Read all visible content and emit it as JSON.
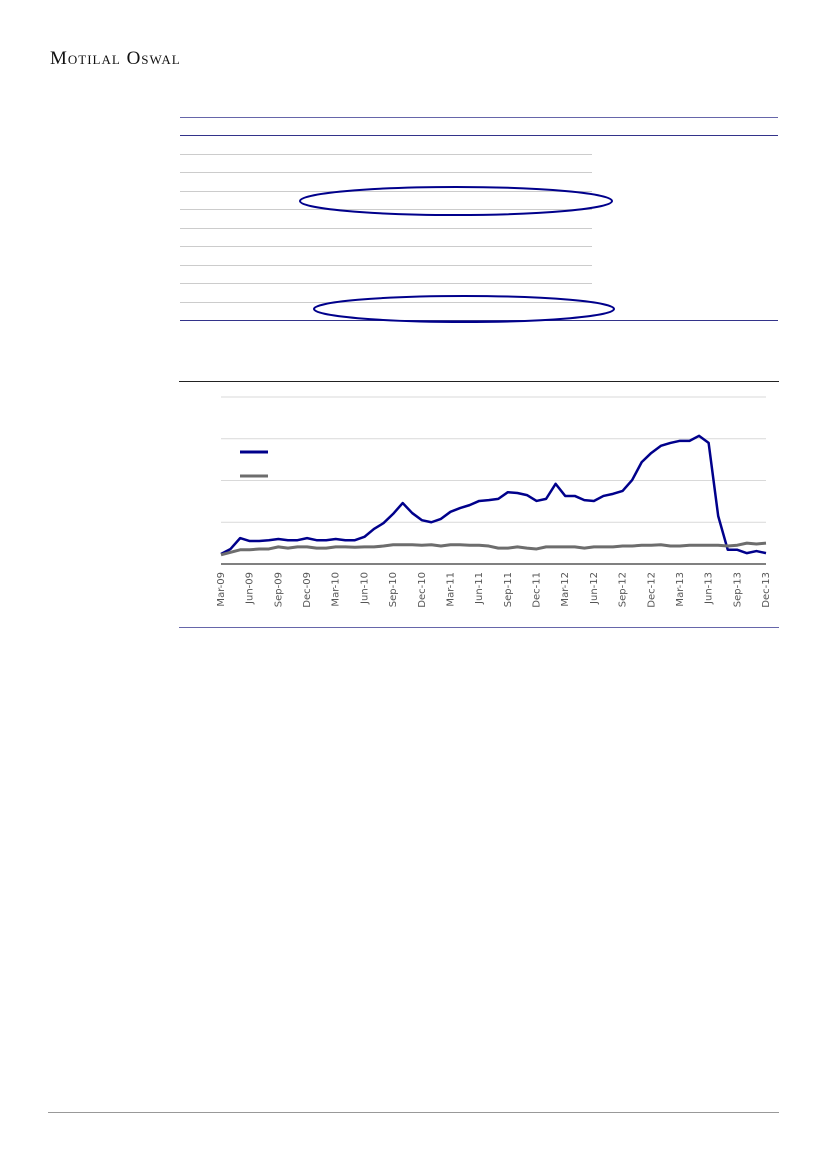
{
  "header": {
    "brand": "Motilal Oswal"
  },
  "chart_data": {
    "type": "line",
    "categories": [
      "Mar-09",
      null,
      null,
      "Jun-09",
      null,
      null,
      "Sep-09",
      null,
      null,
      "Dec-09",
      null,
      null,
      "Mar-10",
      null,
      null,
      "Jun-10",
      null,
      null,
      "Sep-10",
      null,
      null,
      "Dec-10",
      null,
      null,
      "Mar-11",
      null,
      null,
      "Jun-11",
      null,
      null,
      "Sep-11",
      null,
      null,
      "Dec-11",
      null,
      null,
      "Mar-12",
      null,
      null,
      "Jun-12",
      null,
      null,
      "Sep-12",
      null,
      null,
      "Dec-12",
      null,
      null,
      "Mar-13",
      null,
      null,
      "Jun-13",
      null,
      null,
      "Sep-13",
      null,
      null,
      "Dec-13"
    ],
    "series": [
      {
        "color": "#00008b",
        "values": [
          0.24,
          0.36,
          0.62,
          0.55,
          0.55,
          0.57,
          0.6,
          0.57,
          0.57,
          0.62,
          0.57,
          0.57,
          0.6,
          0.57,
          0.57,
          0.65,
          0.84,
          0.98,
          1.2,
          1.46,
          1.22,
          1.05,
          1.0,
          1.08,
          1.25,
          1.34,
          1.41,
          1.51,
          1.53,
          1.56,
          1.72,
          1.7,
          1.65,
          1.51,
          1.56,
          1.92,
          1.63,
          1.63,
          1.53,
          1.51,
          1.63,
          1.68,
          1.75,
          2.01,
          2.44,
          2.66,
          2.83,
          2.9,
          2.95,
          2.95,
          3.07,
          2.9,
          1.15,
          0.34,
          0.34,
          0.26,
          0.31,
          0.26
        ]
      },
      {
        "color": "#6d6d6d",
        "values": [
          0.22,
          0.28,
          0.34,
          0.34,
          0.36,
          0.36,
          0.41,
          0.38,
          0.41,
          0.41,
          0.38,
          0.38,
          0.41,
          0.41,
          0.4,
          0.41,
          0.41,
          0.43,
          0.46,
          0.46,
          0.46,
          0.45,
          0.46,
          0.43,
          0.46,
          0.46,
          0.45,
          0.45,
          0.43,
          0.38,
          0.38,
          0.41,
          0.38,
          0.36,
          0.41,
          0.41,
          0.41,
          0.41,
          0.38,
          0.41,
          0.41,
          0.41,
          0.43,
          0.43,
          0.45,
          0.45,
          0.46,
          0.43,
          0.43,
          0.45,
          0.45,
          0.45,
          0.45,
          0.43,
          0.45,
          0.5,
          0.48,
          0.5
        ]
      }
    ],
    "ylim": [
      0,
      4
    ],
    "ygrid": [
      0,
      1,
      2,
      3,
      4
    ],
    "grid": true
  }
}
